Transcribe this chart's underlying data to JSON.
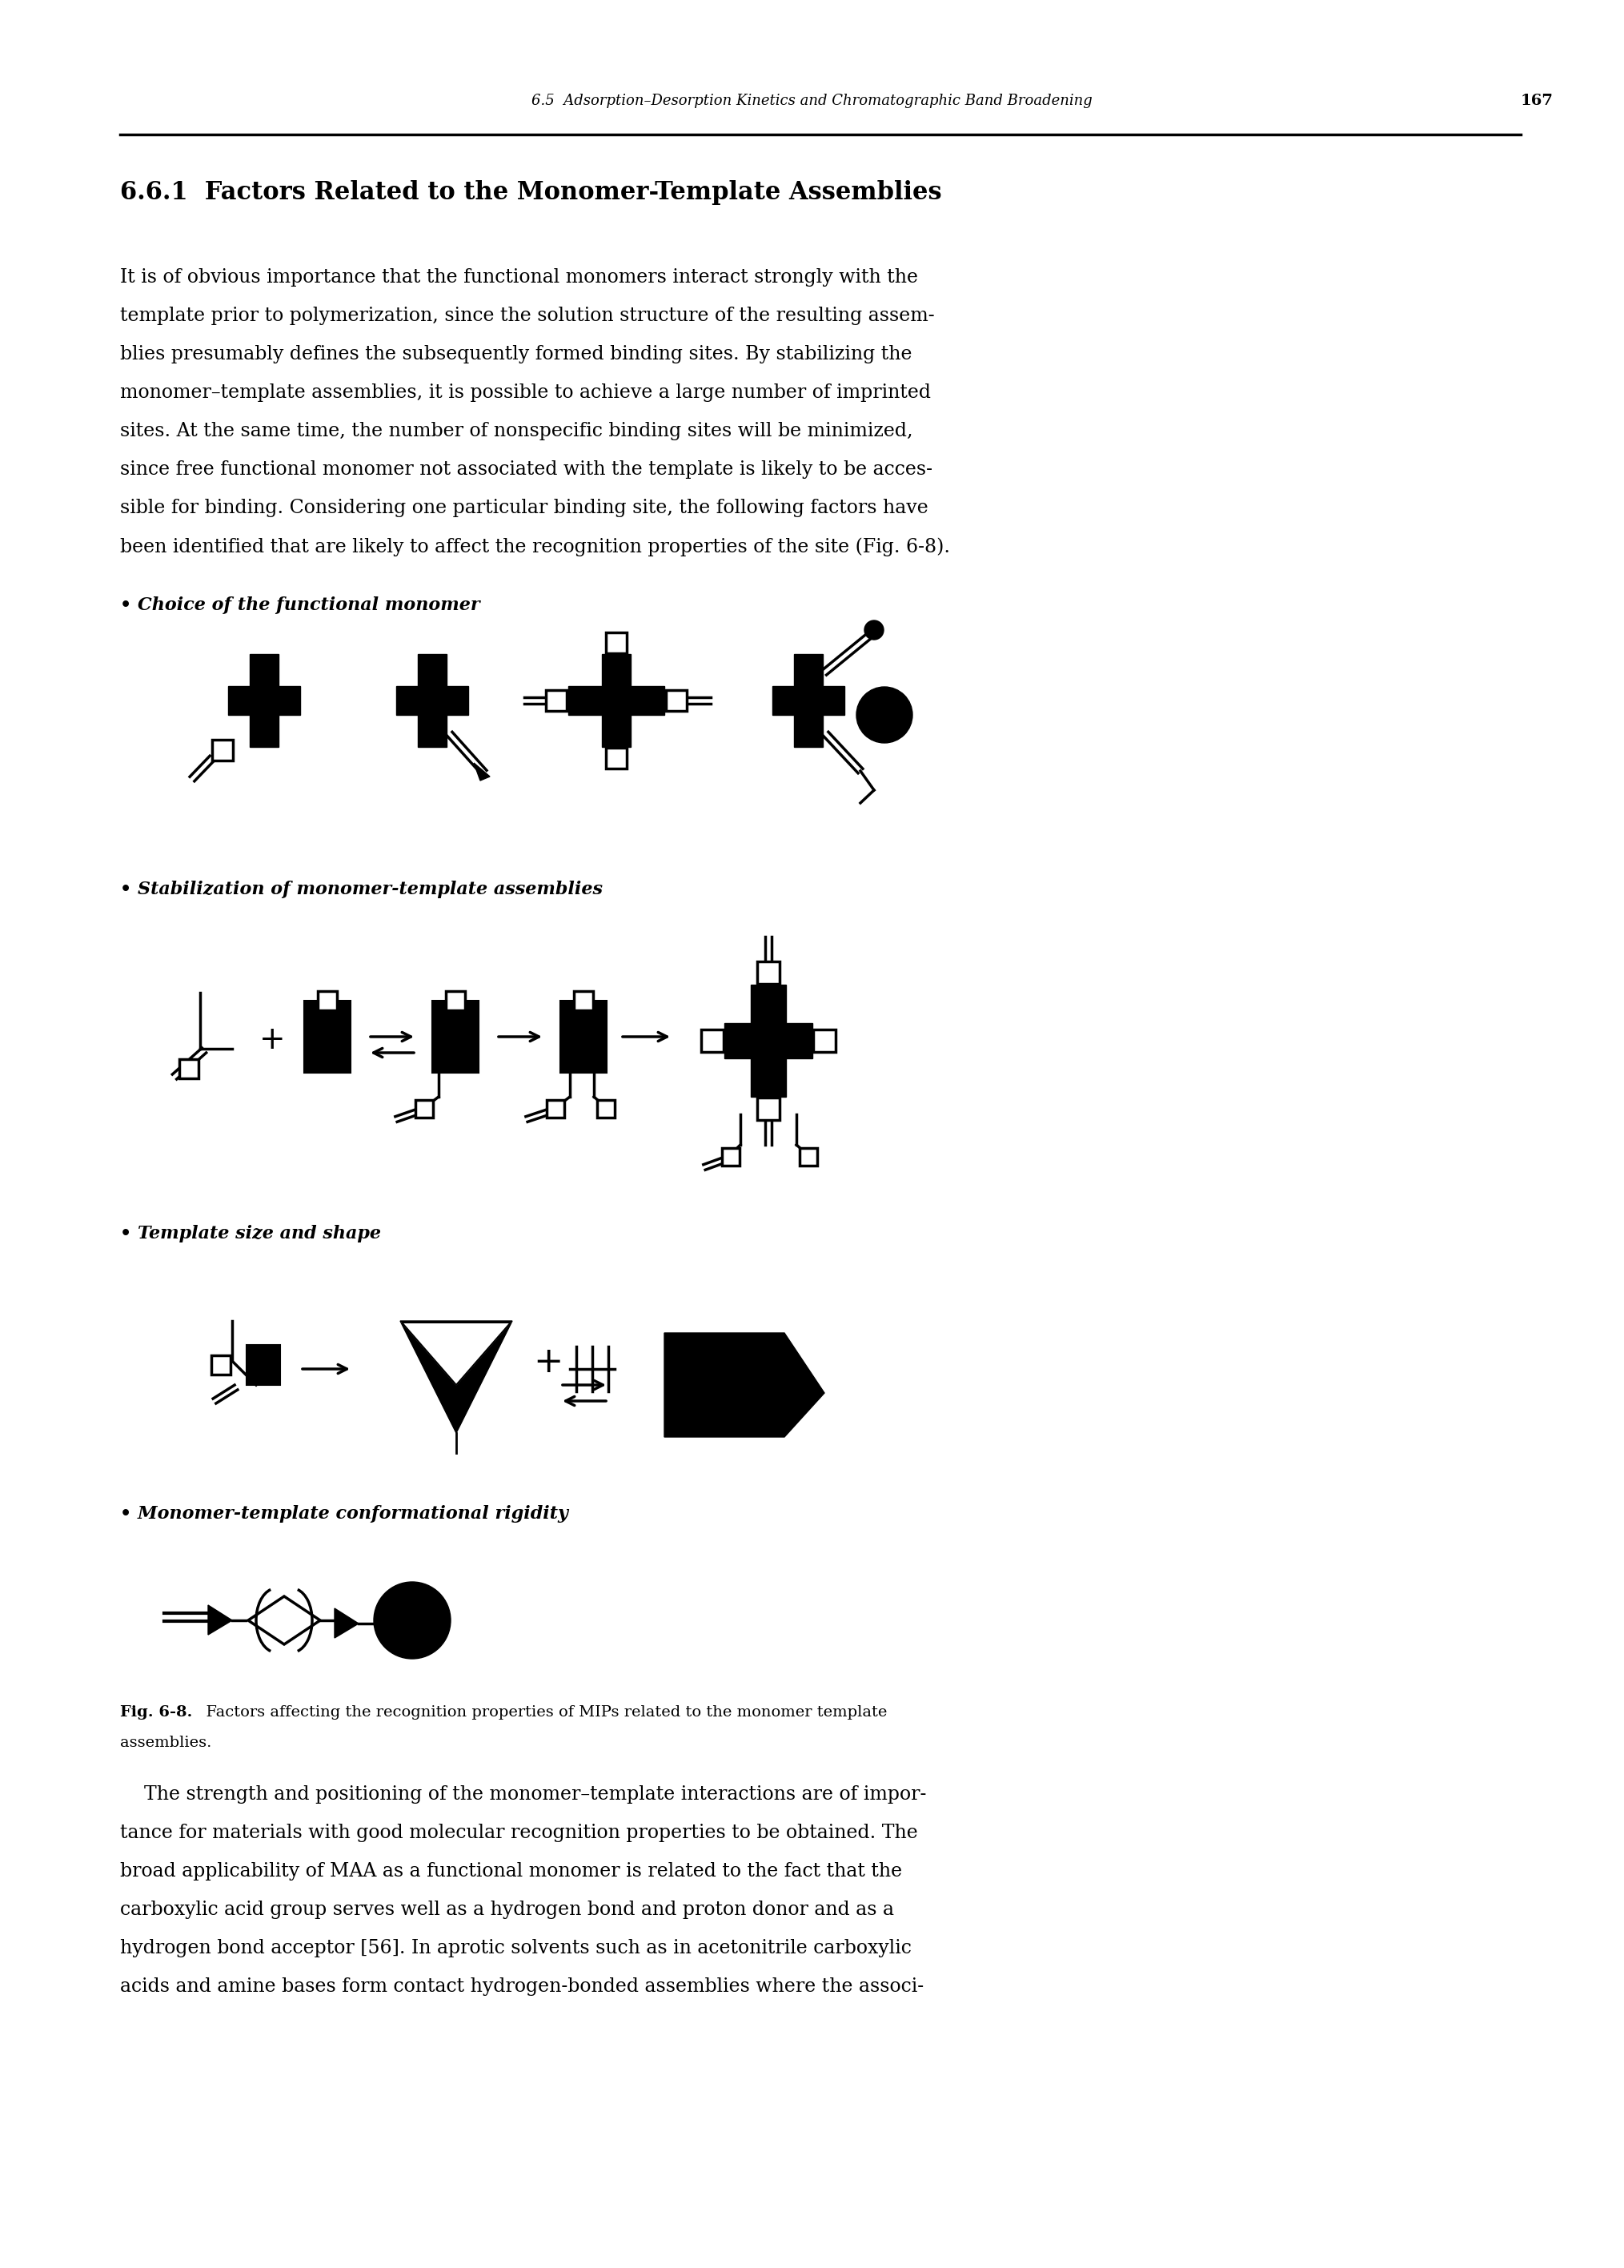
{
  "background_color": "#ffffff",
  "header_text": "6.5  Adsorption–Desorption Kinetics and Chromatographic Band Broadening",
  "header_page": "167",
  "section_title": "6.6.1  Factors Related to the Monomer-Template Assemblies",
  "body_text_1": [
    "It is of obvious importance that the functional monomers interact strongly with the",
    "template prior to polymerization, since the solution structure of the resulting assem-",
    "blies presumably defines the subsequently formed binding sites. By stabilizing the",
    "monomer–template assemblies, it is possible to achieve a large number of imprinted",
    "sites. At the same time, the number of nonspecific binding sites will be minimized,",
    "since free functional monomer not associated with the template is likely to be acces-",
    "sible for binding. Considering one particular binding site, the following factors have",
    "been identified that are likely to affect the recognition properties of the site (Fig. 6-8)."
  ],
  "bullet1": "• Choice of the functional monomer",
  "bullet2": "• Stabilization of monomer-template assemblies",
  "bullet3": "• Template size and shape",
  "bullet4": "• Monomer-template conformational rigidity",
  "caption_bold": "Fig. 6-8.",
  "caption_rest": "  Factors affecting the recognition properties of MIPs related to the monomer template",
  "caption_line2": "assemblies.",
  "body_text_2": [
    "    The strength and positioning of the monomer–template interactions are of impor-",
    "tance for materials with good molecular recognition properties to be obtained. The",
    "broad applicability of MAA as a functional monomer is related to the fact that the",
    "carboxylic acid group serves well as a hydrogen bond and proton donor and as a",
    "hydrogen bond acceptor [56]. In aprotic solvents such as in acetonitrile carboxylic",
    "acids and amine bases form contact hydrogen-bonded assemblies where the associ-"
  ]
}
